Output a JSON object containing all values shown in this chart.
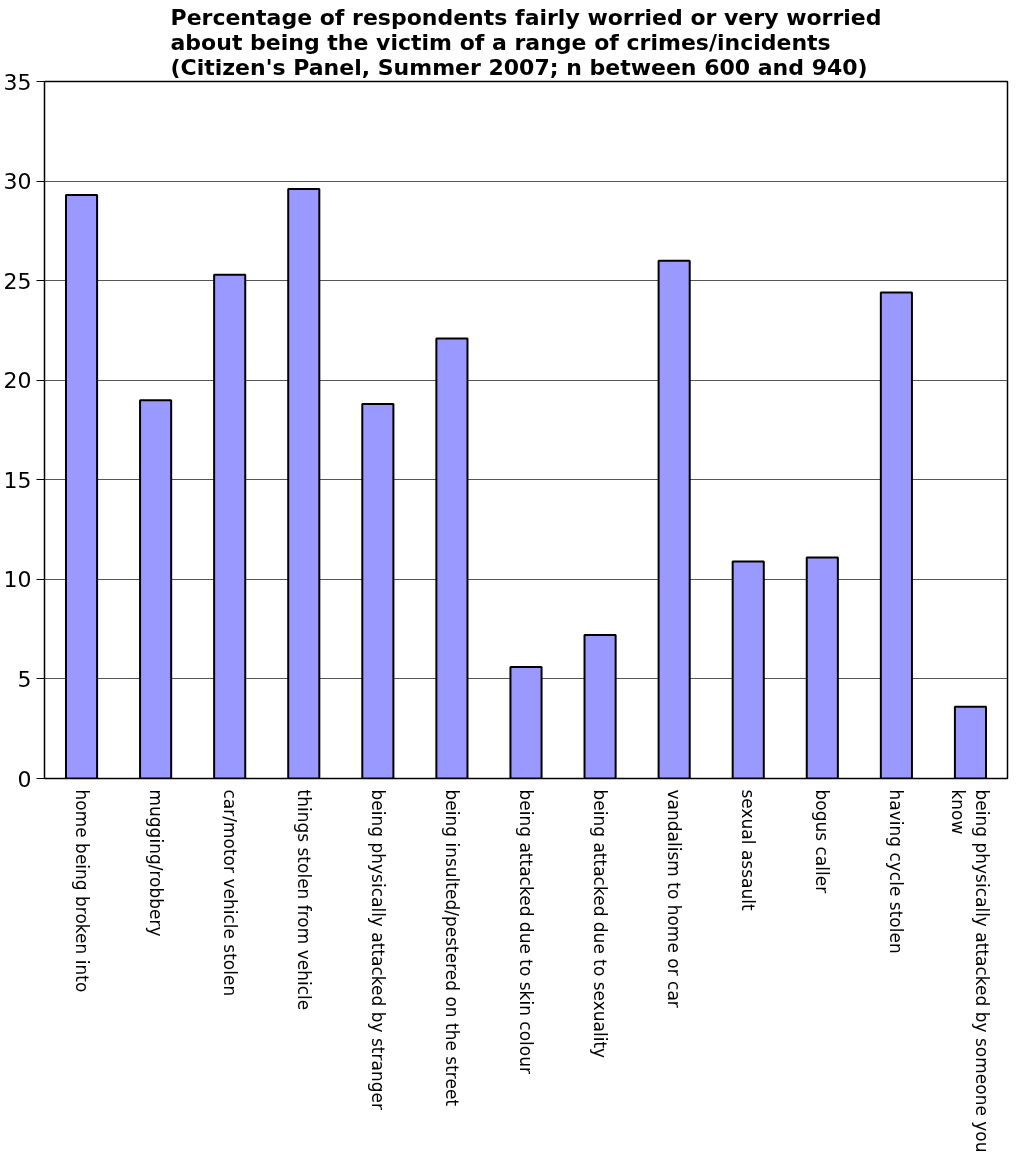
{
  "chart_data": {
    "type": "bar",
    "title": "Percentage of respondents fairly worried or very worried\nabout being the victim of a range of crimes/incidents\n(Citizen's Panel, Summer 2007; n between 600 and 940)",
    "categories": [
      "home being broken into",
      "mugging/robbery",
      "car/motor vehicle stolen",
      "things stolen from vehicle",
      "being physically attacked by stranger",
      "being insulted/pestered on the street",
      "being attacked due to skin colour",
      "being attacked due to sexuality",
      "vandalism to home or car",
      "sexual assault",
      "bogus caller",
      "having cycle stolen",
      "being physically attacked by someone you\nknow"
    ],
    "values": [
      29.3,
      19.0,
      25.3,
      29.6,
      18.8,
      22.1,
      5.6,
      7.2,
      26.0,
      10.9,
      11.1,
      24.4,
      3.6
    ],
    "color": "#9999ff",
    "ylim": [
      0,
      35
    ],
    "yticks": [
      0,
      5,
      10,
      15,
      20,
      25,
      30,
      35
    ],
    "grid": "y"
  }
}
